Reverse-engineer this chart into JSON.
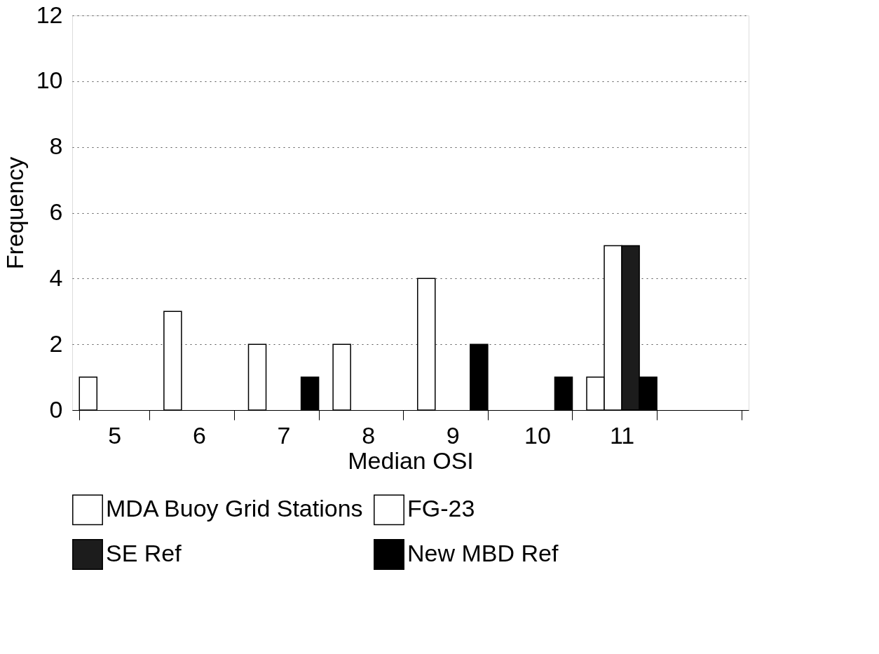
{
  "chart_data": {
    "type": "bar",
    "xlabel": "Median OSI",
    "ylabel": "Frequency",
    "categories": [
      "5",
      "6",
      "7",
      "8",
      "9",
      "10",
      "11",
      null
    ],
    "series": [
      {
        "name": "MDA Buoy Grid Stations",
        "color": "#ffffff",
        "values": [
          1,
          3,
          2,
          2,
          4,
          null,
          1,
          null
        ]
      },
      {
        "name": "FG-23",
        "color": "#ffffff",
        "values": [
          null,
          null,
          null,
          null,
          null,
          null,
          5,
          null
        ]
      },
      {
        "name": "SE Ref",
        "color": "#1c1c1c",
        "values": [
          null,
          null,
          null,
          null,
          null,
          null,
          5,
          null
        ]
      },
      {
        "name": "New MBD Ref",
        "color": "#000000",
        "values": [
          null,
          null,
          1,
          null,
          2,
          1,
          1,
          null
        ]
      }
    ],
    "ylim": [
      0,
      12
    ],
    "yticks": [
      0,
      2,
      4,
      6,
      8,
      10,
      12
    ],
    "grid": "y",
    "legend": "bottom"
  }
}
